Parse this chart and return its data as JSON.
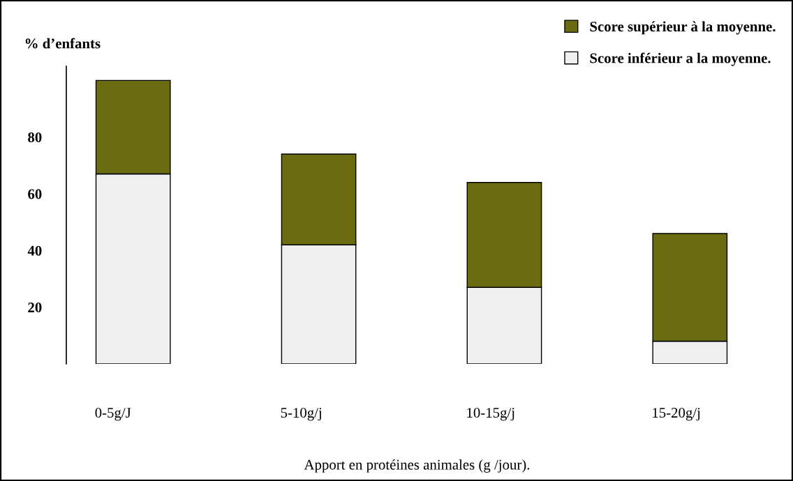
{
  "chart_data": {
    "type": "bar",
    "stacked": true,
    "ylabel": "% d’enfants",
    "xlabel": "Apport en protéines animales (g /jour).",
    "categories": [
      "0-5g/J",
      "5-10g/j",
      "10-15g/j",
      "15-20g/j"
    ],
    "series": [
      {
        "name": "Score inférieur a la moyenne.",
        "color": "#f0f0f0",
        "values": [
          67,
          42,
          27,
          8
        ]
      },
      {
        "name": "Score supérieur à la moyenne.",
        "color": "#6b6b12",
        "values": [
          33,
          32,
          37,
          38
        ]
      }
    ],
    "ylim": [
      0,
      105
    ],
    "yticks": [
      20,
      40,
      60,
      80
    ],
    "grid": false,
    "legend": "top right"
  }
}
